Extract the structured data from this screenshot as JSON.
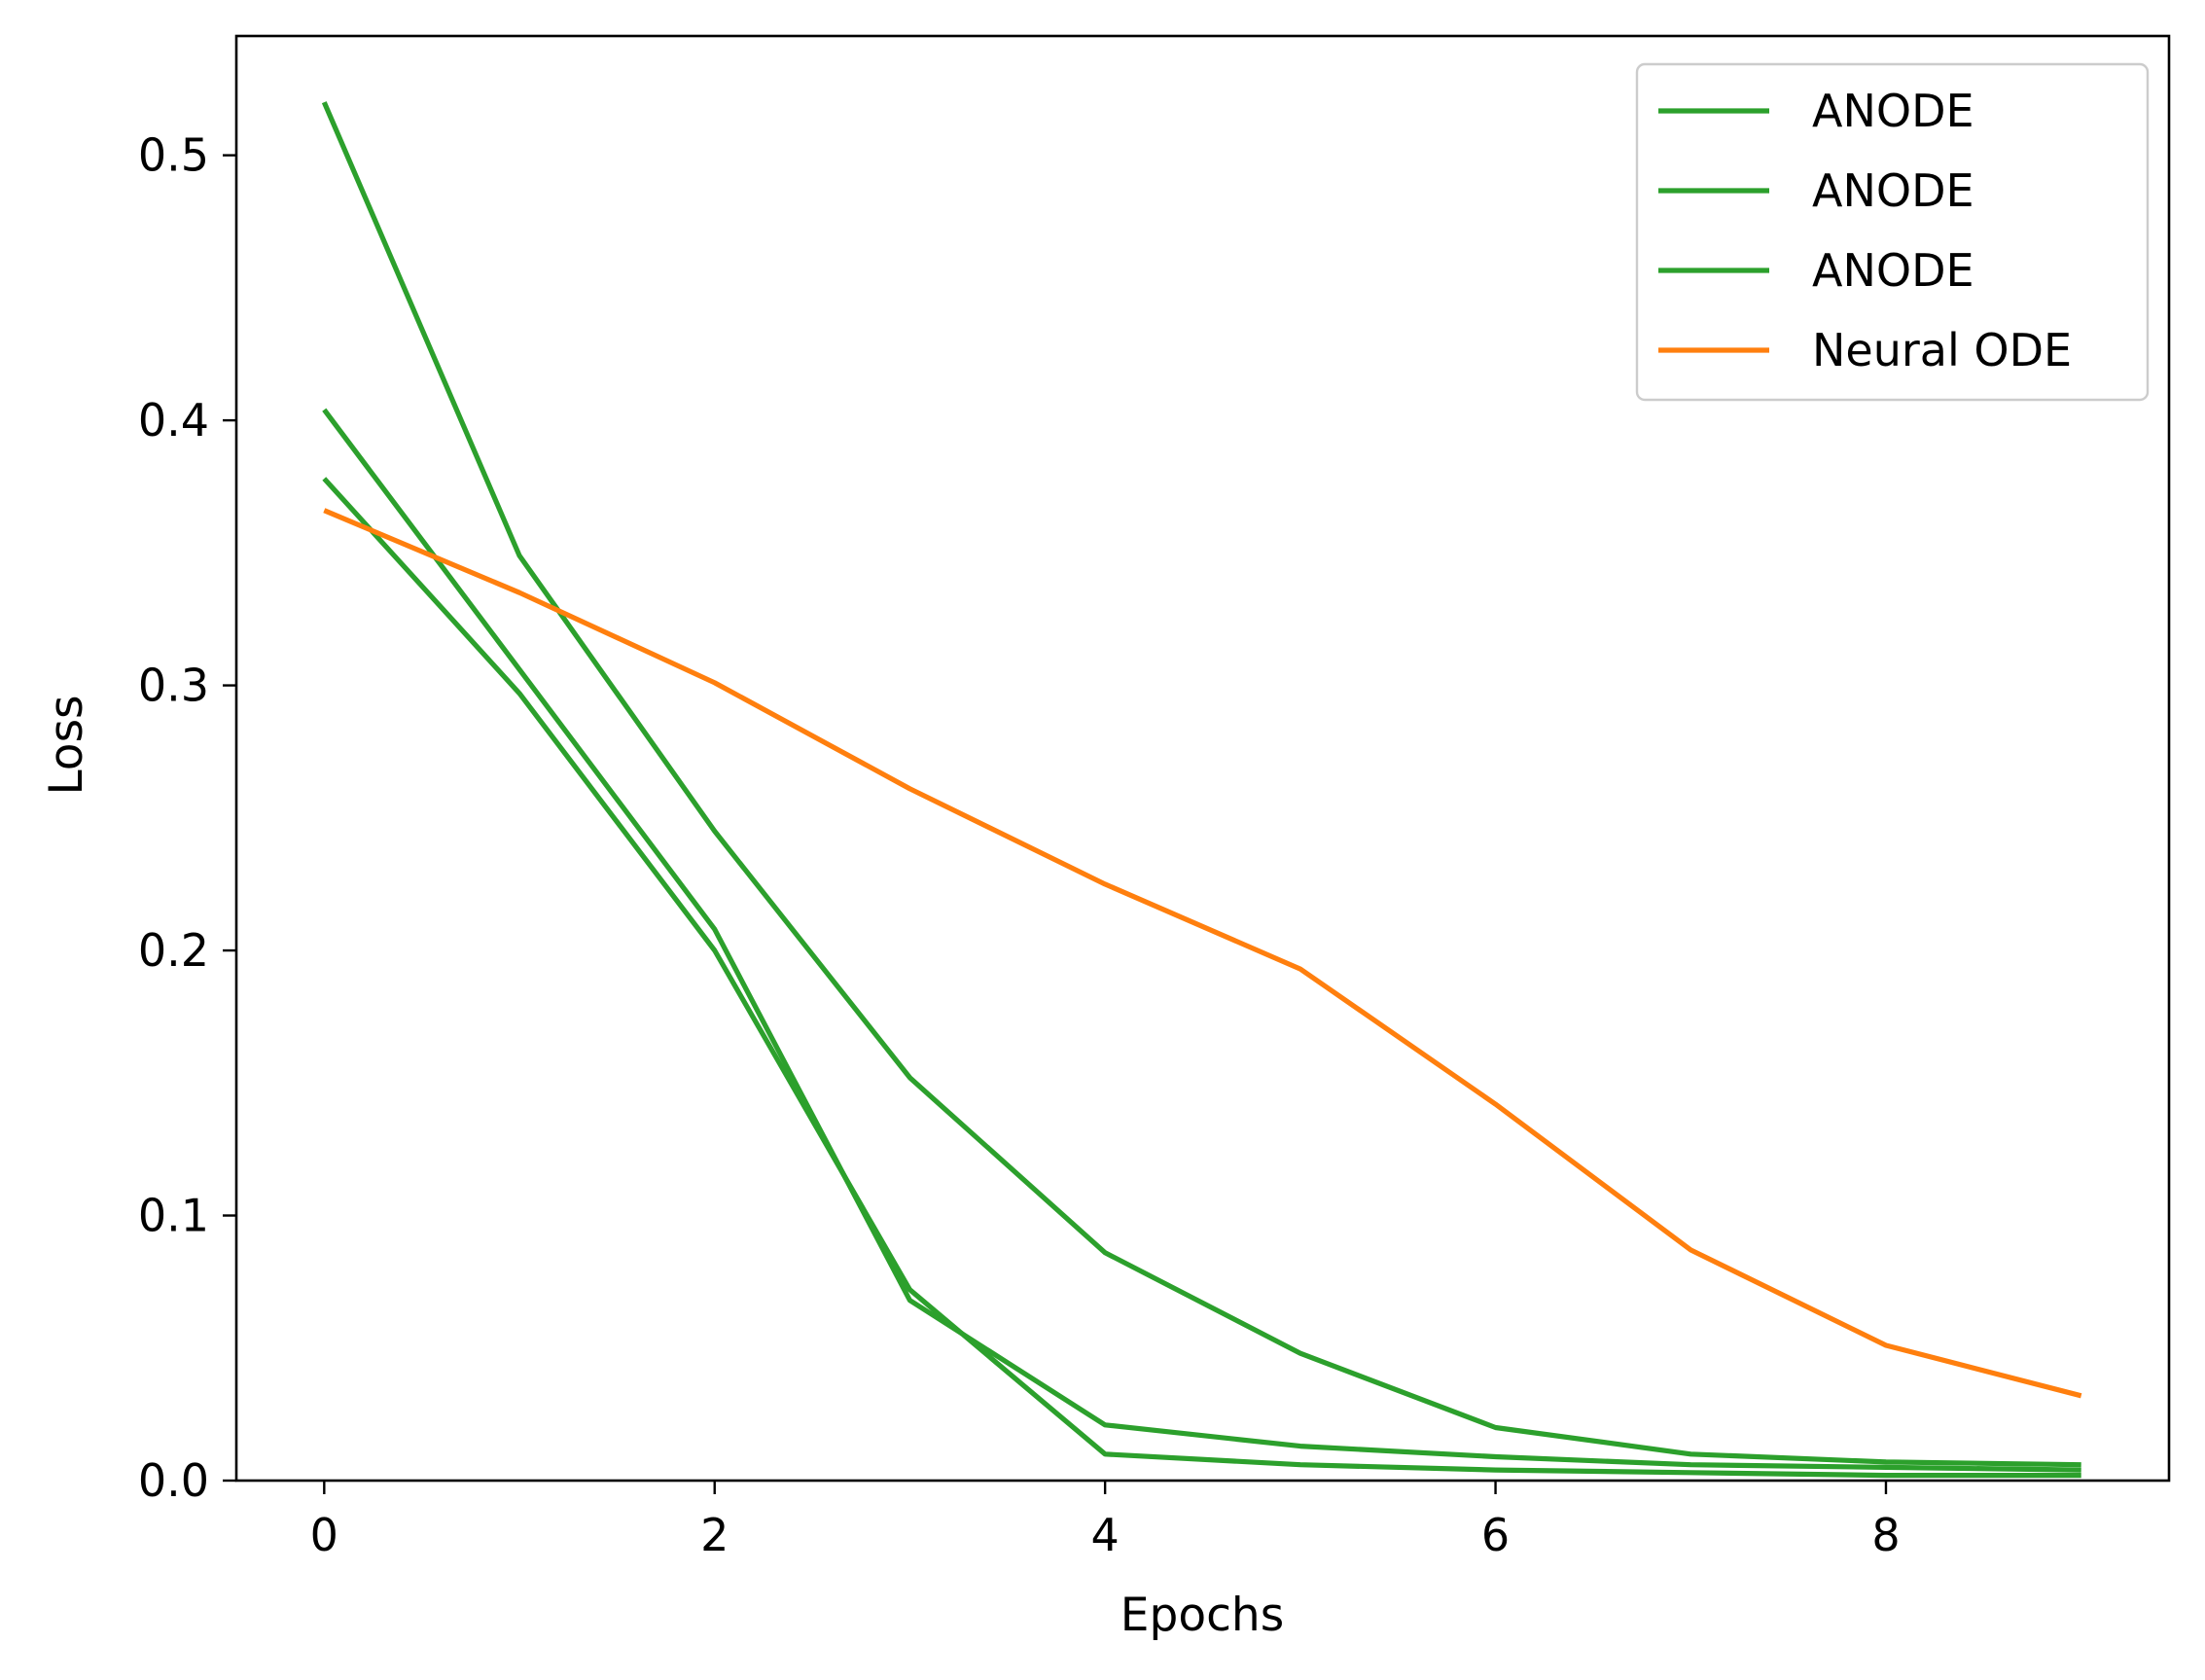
{
  "chart_data": {
    "type": "line",
    "title": "",
    "xlabel": "Epochs",
    "ylabel": "Loss",
    "xlim": [
      -0.45,
      9.45
    ],
    "ylim": [
      0.0,
      0.545
    ],
    "xticks": [
      0,
      2,
      4,
      6,
      8
    ],
    "xtick_labels": [
      "0",
      "2",
      "4",
      "6",
      "8"
    ],
    "yticks": [
      0.0,
      0.1,
      0.2,
      0.3,
      0.4,
      0.5
    ],
    "ytick_labels": [
      "0.0",
      "0.1",
      "0.2",
      "0.3",
      "0.4",
      "0.5"
    ],
    "grid": false,
    "legend_position": "top-right",
    "x": [
      0,
      1,
      2,
      3,
      4,
      5,
      6,
      7,
      8,
      9
    ],
    "series": [
      {
        "name": "ANODE",
        "color": "#2ca02c",
        "values": [
          0.52,
          0.349,
          0.245,
          0.152,
          0.086,
          0.048,
          0.02,
          0.01,
          0.007,
          0.006
        ]
      },
      {
        "name": "ANODE",
        "color": "#2ca02c",
        "values": [
          0.404,
          0.306,
          0.208,
          0.068,
          0.021,
          0.013,
          0.009,
          0.006,
          0.005,
          0.004
        ]
      },
      {
        "name": "ANODE",
        "color": "#2ca02c",
        "values": [
          0.378,
          0.297,
          0.2,
          0.072,
          0.01,
          0.006,
          0.004,
          0.003,
          0.002,
          0.002
        ]
      },
      {
        "name": "Neural ODE",
        "color": "#ff7f0e",
        "values": [
          0.366,
          0.335,
          0.301,
          0.261,
          0.225,
          0.193,
          0.142,
          0.087,
          0.051,
          0.032
        ]
      }
    ]
  }
}
